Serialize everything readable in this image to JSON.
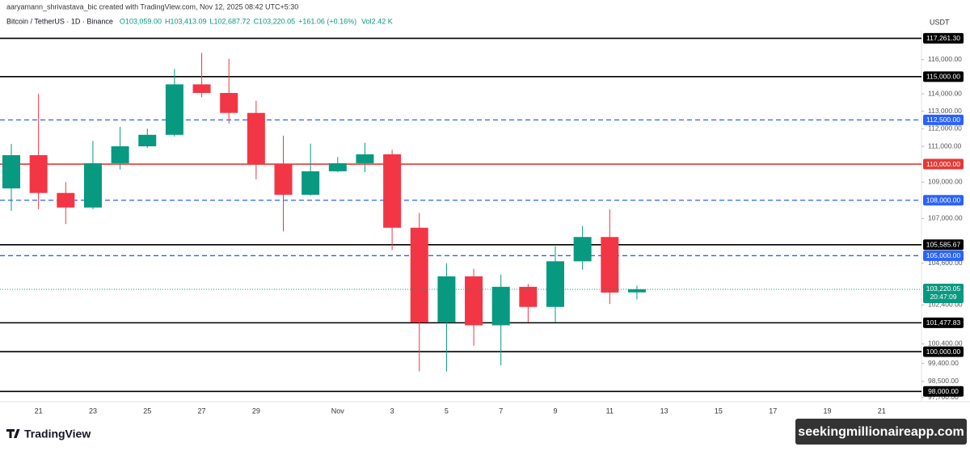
{
  "header": {
    "author_line": "aaryamann_shrivastava_bic created with TradingView.com, Nov 12, 2025 08:42 UTC+5:30",
    "symbol": "Bitcoin / TetherUS · 1D · Binance",
    "ohlc": [
      "O103,059.00",
      "H103,413.09",
      "L102,687.72",
      "C103,220.05",
      "+161.06 (+0.16%)"
    ],
    "volume": "Vol2.42 K",
    "currency": "USDT"
  },
  "footer": {
    "brand": "TradingView",
    "watermark": "seekingmillionaireapp.com"
  },
  "chart_data": {
    "type": "candlestick",
    "log_scale": true,
    "up_color": "#089981",
    "down_color": "#f23645",
    "categories": [
      null,
      "21",
      null,
      "23",
      null,
      "25",
      null,
      "27",
      null,
      "29",
      null,
      null,
      "Nov",
      null,
      "3",
      null,
      "5",
      null,
      "7",
      null,
      "9",
      null,
      "11",
      null,
      "13",
      null,
      "15",
      null,
      "17",
      null,
      "19",
      null,
      "21"
    ],
    "open": [
      108650,
      110500,
      108400,
      107600,
      110050,
      111000,
      111650,
      114550,
      114050,
      112900,
      110000,
      108300,
      109600,
      110050,
      110550,
      106500,
      101500,
      103900,
      101350,
      103350,
      102300,
      104700,
      106000,
      103059,
      null,
      null,
      null,
      null,
      null,
      null,
      null,
      null,
      null
    ],
    "high": [
      111140,
      114000,
      109000,
      111300,
      112100,
      112000,
      115450,
      116400,
      116050,
      113600,
      111600,
      111150,
      110400,
      111200,
      110800,
      107300,
      104600,
      104300,
      104000,
      103500,
      105500,
      106600,
      107500,
      103413.09,
      null,
      null,
      null,
      null,
      null,
      null,
      null,
      null,
      null
    ],
    "low": [
      107420,
      107500,
      106700,
      107500,
      109700,
      110900,
      111550,
      113800,
      112300,
      109150,
      106300,
      108250,
      109550,
      109550,
      105300,
      99000,
      99000,
      100300,
      99300,
      101500,
      101500,
      104250,
      102450,
      102687.72,
      null,
      null,
      null,
      null,
      null,
      null,
      null,
      null,
      null
    ],
    "close": [
      110500,
      108400,
      107600,
      110050,
      111000,
      111650,
      114550,
      114050,
      112900,
      110000,
      108300,
      109600,
      110050,
      110550,
      106500,
      101500,
      103900,
      101350,
      103350,
      102300,
      104700,
      106000,
      103050,
      103220.05,
      null,
      null,
      null,
      null,
      null,
      null,
      null,
      null,
      null
    ],
    "ylim": [
      97690,
      117716
    ],
    "yticks": [
      {
        "value": 116000,
        "label": "116,000.00"
      },
      {
        "value": 114000,
        "label": "114,000.00"
      },
      {
        "value": 113000,
        "label": "113,000.00"
      },
      {
        "value": 112000,
        "label": "112,000.00"
      },
      {
        "value": 111000,
        "label": "111,000.00"
      },
      {
        "value": 109000,
        "label": "109,000.00"
      },
      {
        "value": 107000,
        "label": "107,000.00"
      },
      {
        "value": 104600,
        "label": "104,600.00"
      },
      {
        "value": 102400,
        "label": "102,400.00"
      },
      {
        "value": 100400,
        "label": "100,400.00"
      },
      {
        "value": 99400,
        "label": "99,400.00"
      },
      {
        "value": 98500,
        "label": "98,500.00"
      },
      {
        "value": 97700,
        "label": "97,700.00"
      }
    ],
    "price_levels": [
      {
        "value": 117261.3,
        "label": "117,261.30",
        "color": "#000000",
        "style": "solid"
      },
      {
        "value": 115000,
        "label": "115,000.00",
        "color": "#000000",
        "style": "solid"
      },
      {
        "value": 112500,
        "label": "112,500.00",
        "color": "#2962ff",
        "style": "dashed"
      },
      {
        "value": 110000,
        "label": "110,000.00",
        "color": "#e53935",
        "style": "solid"
      },
      {
        "value": 108000,
        "label": "108,000.00",
        "color": "#2962ff",
        "style": "dashed"
      },
      {
        "value": 105585.67,
        "label": "105,585.67",
        "color": "#000000",
        "style": "solid"
      },
      {
        "value": 105000,
        "label": "105,000.00",
        "color": "#2962ff",
        "style": "dashed"
      },
      {
        "value": 101477.83,
        "label": "101,477.83",
        "color": "#000000",
        "style": "solid"
      },
      {
        "value": 100000,
        "label": "100,000.00",
        "color": "#000000",
        "style": "solid"
      },
      {
        "value": 98000,
        "label": "98,000.00",
        "color": "#000000",
        "style": "solid"
      }
    ],
    "last_price": {
      "value": 103220.05,
      "label": "103,220.05",
      "countdown": "20:47:09",
      "color": "#089981"
    }
  }
}
